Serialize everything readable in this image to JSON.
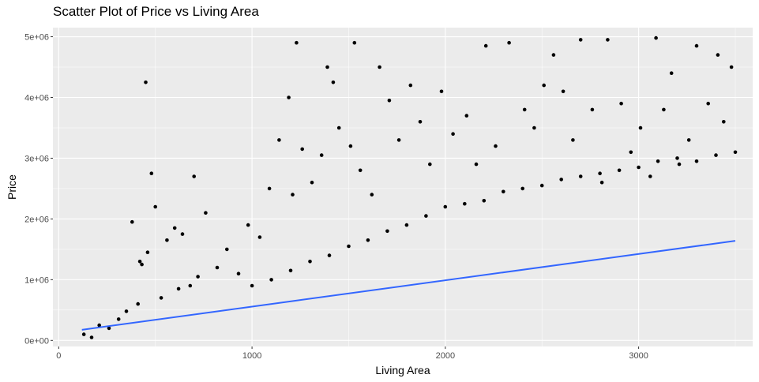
{
  "chart_data": {
    "type": "scatter",
    "title": "Scatter Plot of Price vs Living Area",
    "xlabel": "Living Area",
    "ylabel": "Price",
    "xlim": [
      -30,
      3590
    ],
    "ylim": [
      -100000,
      5150000
    ],
    "x_ticks": [
      0,
      1000,
      2000,
      3000
    ],
    "x_tick_labels": [
      "0",
      "1000",
      "2000",
      "3000"
    ],
    "y_ticks": [
      0,
      1000000,
      2000000,
      3000000,
      4000000,
      5000000
    ],
    "y_tick_labels": [
      "0e+00",
      "1e+06",
      "2e+06",
      "3e+06",
      "4e+06",
      "5e+06"
    ],
    "grid": true,
    "panel_background": "#ebebeb",
    "point_color": "#000000",
    "fit_line": {
      "x": [
        120,
        3500
      ],
      "y": [
        175000,
        1640000
      ],
      "color": "#3366ff"
    },
    "points": {
      "x": [
        450,
        480,
        380,
        420,
        430,
        460,
        500,
        560,
        600,
        640,
        700,
        760,
        1190,
        1230,
        1420,
        1390,
        1530,
        1660,
        1820,
        2210,
        2330,
        2560,
        2700,
        2840,
        3090,
        3170,
        3300,
        3410,
        3480,
        350,
        410,
        530,
        620,
        680,
        720,
        820,
        870,
        930,
        980,
        1040,
        1090,
        1140,
        1210,
        1260,
        1310,
        1360,
        1450,
        1510,
        1560,
        1620,
        1710,
        1760,
        1870,
        1920,
        1980,
        2040,
        2110,
        2160,
        2260,
        2410,
        2460,
        2510,
        2610,
        2660,
        2760,
        2810,
        2910,
        2960,
        3010,
        3060,
        3130,
        3210,
        3260,
        3360,
        3440,
        130,
        170,
        210,
        260,
        310,
        1000,
        1100,
        1200,
        1300,
        1400,
        1500,
        1600,
        1700,
        1800,
        1900,
        2000,
        2100,
        2200,
        2300,
        2400,
        2500,
        2600,
        2700,
        2800,
        2900,
        3000,
        3100,
        3200,
        3300,
        3400,
        3500
      ],
      "y": [
        4250000,
        2750000,
        1950000,
        1300000,
        1250000,
        1450000,
        2200000,
        1650000,
        1850000,
        1750000,
        2700000,
        2100000,
        4000000,
        4900000,
        4250000,
        4500000,
        4900000,
        4500000,
        4200000,
        4850000,
        4900000,
        4700000,
        4950000,
        4950000,
        4980000,
        4400000,
        4850000,
        4700000,
        4500000,
        480000,
        600000,
        700000,
        850000,
        900000,
        1050000,
        1200000,
        1500000,
        1100000,
        1900000,
        1700000,
        2500000,
        3300000,
        2400000,
        3150000,
        2600000,
        3050000,
        3500000,
        3200000,
        2800000,
        2400000,
        3950000,
        3300000,
        3600000,
        2900000,
        4100000,
        3400000,
        3700000,
        2900000,
        3200000,
        3800000,
        3500000,
        4200000,
        4100000,
        3300000,
        3800000,
        2600000,
        3900000,
        3100000,
        3500000,
        2700000,
        3800000,
        2900000,
        3300000,
        3900000,
        3600000,
        100000,
        50000,
        250000,
        200000,
        350000,
        900000,
        1000000,
        1150000,
        1300000,
        1400000,
        1550000,
        1650000,
        1800000,
        1900000,
        2050000,
        2200000,
        2250000,
        2300000,
        2450000,
        2500000,
        2550000,
        2650000,
        2700000,
        2750000,
        2800000,
        2850000,
        2950000,
        3000000,
        2950000,
        3050000,
        3100000
      ]
    }
  }
}
